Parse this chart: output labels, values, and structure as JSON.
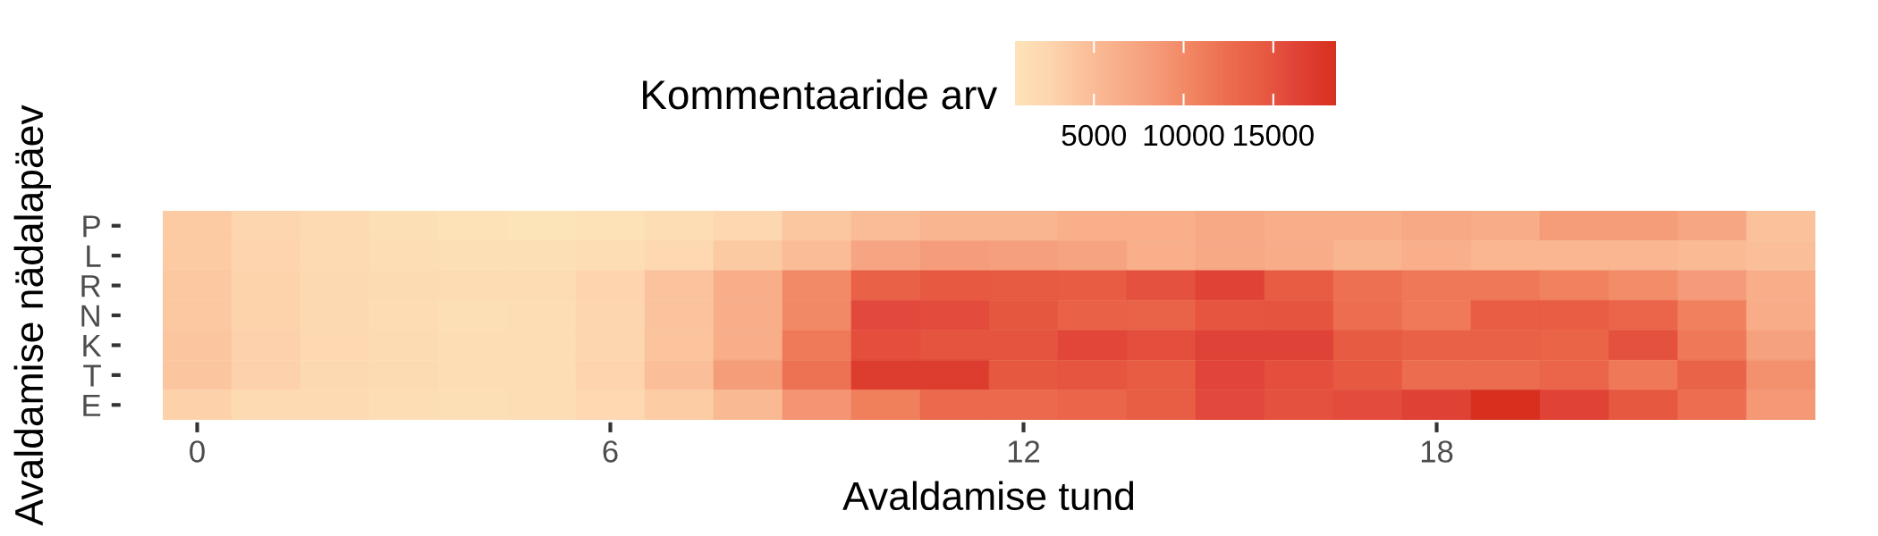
{
  "chart_data": {
    "type": "heatmap",
    "xlabel": "Avaldamise tund",
    "ylabel": "Avaldamise nädalapäev",
    "clabel": "Kommentaaride arv",
    "categories": [
      "0",
      null,
      null,
      null,
      null,
      null,
      "6",
      null,
      null,
      null,
      null,
      null,
      "12",
      null,
      null,
      null,
      null,
      null,
      "18",
      null,
      null,
      null,
      null,
      null
    ],
    "y_categories": [
      "P",
      "L",
      "R",
      "N",
      "K",
      "T",
      "E"
    ],
    "cells": [
      [
        3500,
        2500,
        1800,
        1200,
        800,
        600,
        900,
        1400,
        2300,
        3900,
        5000,
        5600,
        5600,
        6200,
        6300,
        7000,
        6400,
        6400,
        7000,
        6600,
        8300,
        8300,
        7200,
        4500
      ],
      [
        3500,
        2600,
        1900,
        1400,
        1100,
        1100,
        1500,
        2200,
        3700,
        5000,
        7400,
        8200,
        8000,
        7500,
        6300,
        7000,
        6600,
        5700,
        6300,
        5500,
        5500,
        5500,
        5100,
        4600
      ],
      [
        3800,
        2700,
        2000,
        1700,
        1600,
        1600,
        2600,
        4300,
        6400,
        9900,
        13600,
        14500,
        14400,
        14300,
        15200,
        16300,
        14300,
        12200,
        11500,
        11500,
        10600,
        9700,
        8400,
        6400
      ],
      [
        3800,
        2700,
        2000,
        1600,
        1200,
        1500,
        2500,
        4300,
        6400,
        10000,
        15800,
        15600,
        14700,
        13700,
        13500,
        14800,
        15000,
        12400,
        11400,
        14100,
        14200,
        13200,
        10800,
        6500
      ],
      [
        4000,
        2900,
        2100,
        1700,
        1300,
        1500,
        2500,
        4200,
        6400,
        11300,
        15300,
        15000,
        15000,
        16000,
        15400,
        16400,
        16400,
        14400,
        13700,
        13700,
        13400,
        15200,
        11500,
        7800
      ],
      [
        4000,
        2900,
        2000,
        1700,
        1400,
        1500,
        2600,
        4600,
        8300,
        12000,
        17000,
        17000,
        14600,
        14800,
        14300,
        16100,
        15400,
        14500,
        12500,
        12500,
        13200,
        11500,
        13500,
        9300
      ],
      [
        2800,
        1900,
        1800,
        1300,
        1200,
        1400,
        2100,
        3400,
        5200,
        9000,
        10900,
        12800,
        12700,
        13300,
        14000,
        15800,
        15200,
        15500,
        16500,
        18500,
        16300,
        14600,
        12400,
        8700
      ]
    ],
    "clim": [
      600,
      18500
    ],
    "cticks": [
      5000,
      10000,
      15000
    ]
  }
}
